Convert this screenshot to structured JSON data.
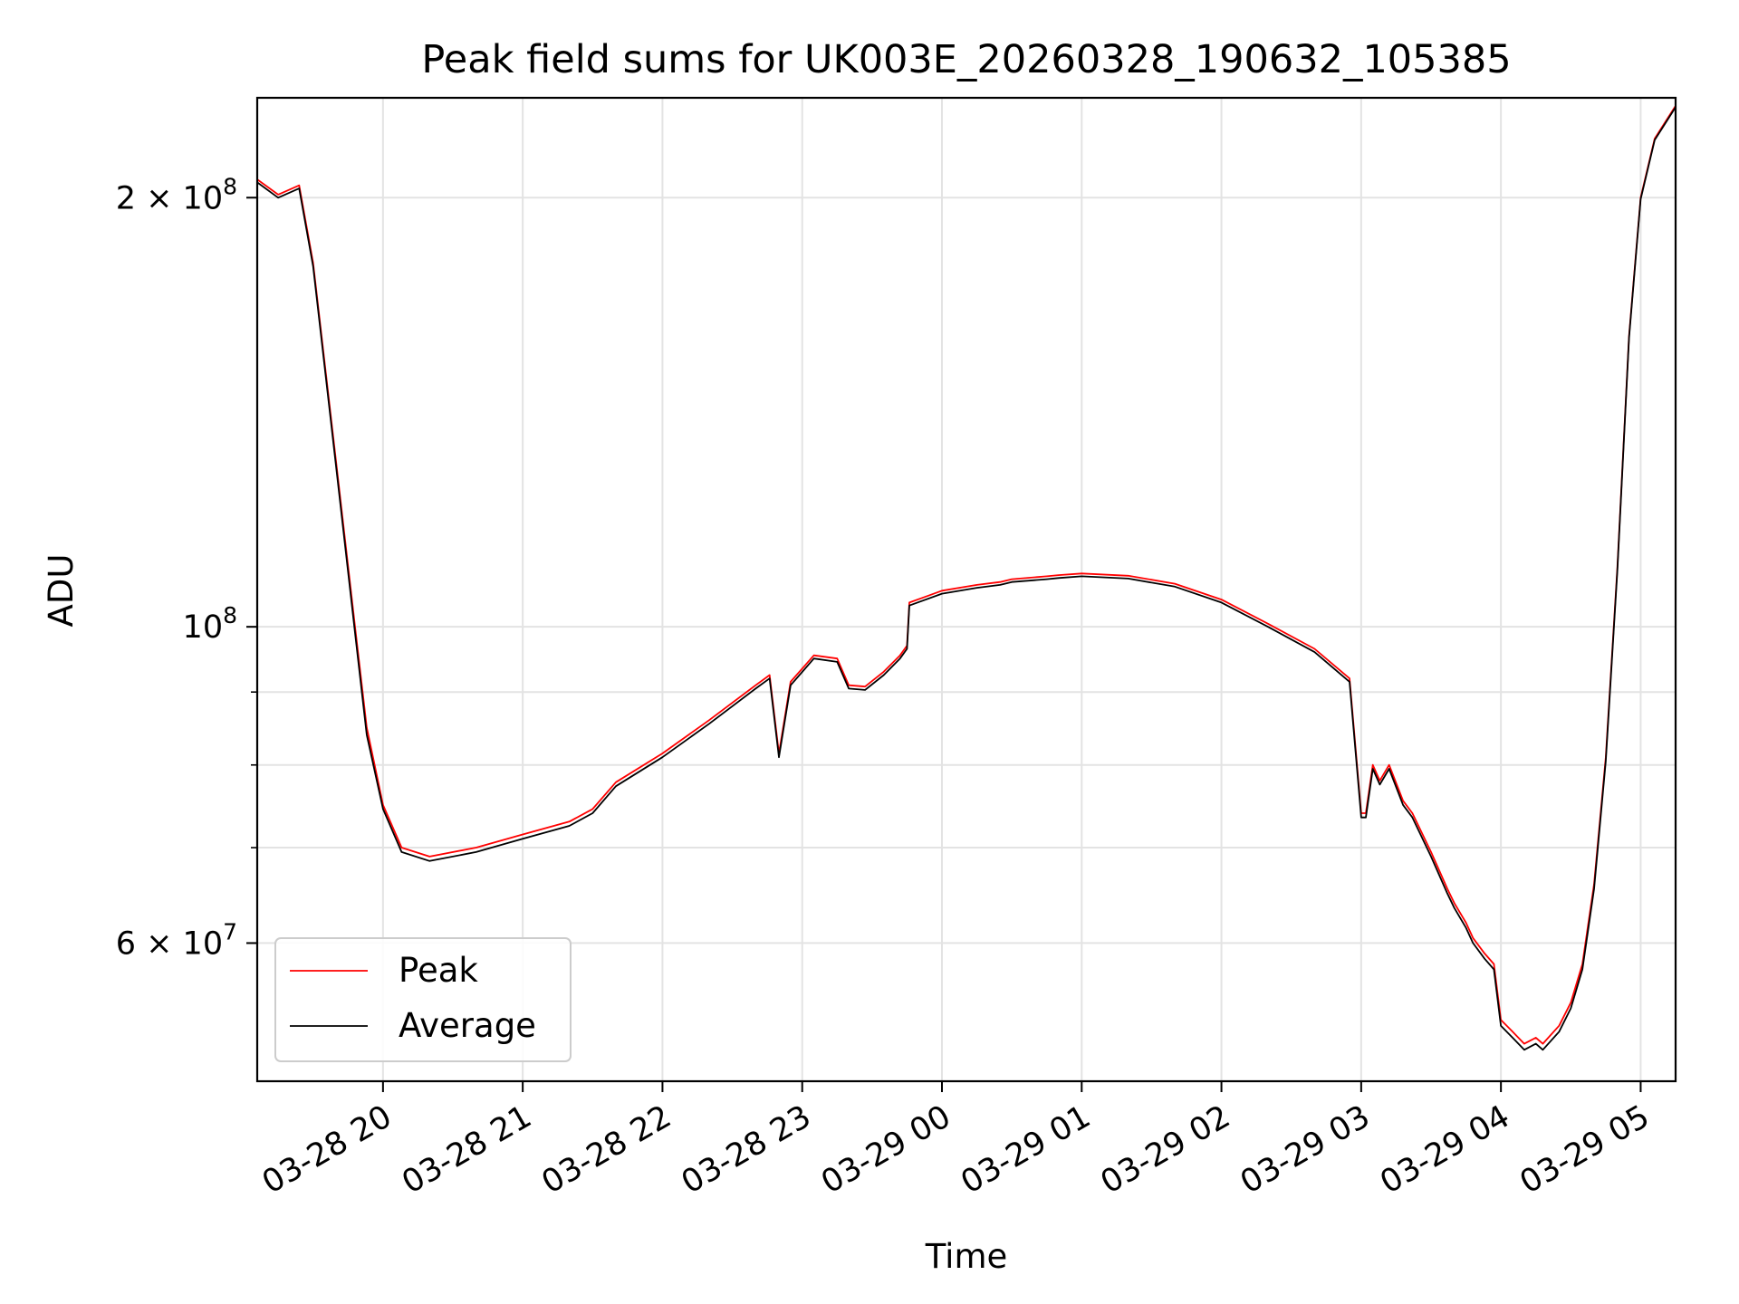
{
  "chart_data": {
    "type": "line",
    "title": "Peak field sums for UK003E_20260328_190632_105385",
    "xlabel": "Time",
    "ylabel": "ADU",
    "y_scale": "log",
    "ylim": [
      48000000,
      235000000
    ],
    "xlim": [
      "03-28 19:06",
      "03-29 05:15"
    ],
    "grid": true,
    "legend_position": "lower-left",
    "x_ticks": [
      "03-28 20",
      "03-28 21",
      "03-28 22",
      "03-28 23",
      "03-29 00",
      "03-29 01",
      "03-29 02",
      "03-29 03",
      "03-29 04",
      "03-29 05"
    ],
    "y_tick_labels": [
      {
        "value": 200000000,
        "mantissa": "2",
        "exponent": "8"
      },
      {
        "value": 100000000,
        "mantissa": "",
        "exponent": "8"
      },
      {
        "value": 60000000,
        "mantissa": "6",
        "exponent": "7"
      }
    ],
    "y_minor_ticks": [
      70000000,
      80000000,
      90000000
    ],
    "colors": {
      "peak": "#ff0000",
      "average": "#000000"
    },
    "x": [
      "03-28 19:06",
      "03-28 19:15",
      "03-28 19:24",
      "03-28 19:30",
      "03-28 19:40",
      "03-28 19:48",
      "03-28 19:53",
      "03-28 20:00",
      "03-28 20:08",
      "03-28 20:20",
      "03-28 20:40",
      "03-28 21:00",
      "03-28 21:20",
      "03-28 21:30",
      "03-28 21:40",
      "03-28 22:00",
      "03-28 22:20",
      "03-28 22:40",
      "03-28 22:46",
      "03-28 22:50",
      "03-28 22:55",
      "03-28 23:05",
      "03-28 23:15",
      "03-28 23:20",
      "03-28 23:27",
      "03-28 23:35",
      "03-28 23:42",
      "03-28 23:45",
      "03-28 23:46",
      "03-29 00:00",
      "03-29 00:15",
      "03-29 00:25",
      "03-29 00:30",
      "03-29 00:45",
      "03-29 00:50",
      "03-29 01:00",
      "03-29 01:20",
      "03-29 01:40",
      "03-29 02:00",
      "03-29 02:20",
      "03-29 02:40",
      "03-29 02:55",
      "03-29 03:00",
      "03-29 03:02",
      "03-29 03:05",
      "03-29 03:08",
      "03-29 03:12",
      "03-29 03:18",
      "03-29 03:22",
      "03-29 03:30",
      "03-29 03:37",
      "03-29 03:40",
      "03-29 03:45",
      "03-29 03:48",
      "03-29 03:53",
      "03-29 03:57",
      "03-29 04:00",
      "03-29 04:05",
      "03-29 04:10",
      "03-29 04:15",
      "03-29 04:18",
      "03-29 04:25",
      "03-29 04:30",
      "03-29 04:35",
      "03-29 04:40",
      "03-29 04:45",
      "03-29 04:50",
      "03-29 04:55",
      "03-29 05:00",
      "03-29 05:06",
      "03-29 05:15"
    ],
    "series": [
      {
        "name": "Peak",
        "values": [
          206000000,
          201000000,
          204000000,
          180000000,
          130000000,
          100000000,
          85000000,
          75000000,
          70000000,
          69000000,
          70000000,
          71500000,
          73000000,
          74500000,
          77800000,
          81500000,
          86000000,
          91000000,
          92500000,
          81500000,
          91500000,
          95500000,
          95000000,
          91000000,
          90800000,
          93000000,
          95500000,
          97000000,
          104000000,
          106000000,
          107000000,
          107500000,
          108000000,
          108500000,
          108700000,
          109000000,
          108600000,
          107200000,
          104500000,
          100500000,
          96500000,
          92000000,
          74000000,
          74000000,
          80000000,
          78000000,
          80000000,
          75500000,
          74000000,
          69500000,
          65500000,
          64000000,
          62000000,
          60500000,
          59000000,
          58000000,
          53000000,
          52000000,
          51000000,
          51500000,
          51000000,
          52500000,
          54500000,
          58000000,
          66000000,
          81000000,
          110000000,
          160000000,
          200000000,
          220000000,
          232000000
        ]
      },
      {
        "name": "Average",
        "values": [
          205000000,
          200000000,
          203000000,
          179000000,
          129000000,
          99000000,
          84000000,
          74500000,
          69500000,
          68500000,
          69500000,
          71000000,
          72500000,
          74000000,
          77300000,
          81000000,
          85500000,
          90500000,
          92000000,
          81000000,
          91000000,
          95000000,
          94500000,
          90500000,
          90300000,
          92500000,
          95000000,
          96500000,
          103500000,
          105500000,
          106500000,
          107000000,
          107500000,
          108000000,
          108200000,
          108500000,
          108100000,
          106700000,
          104000000,
          100000000,
          96000000,
          91500000,
          73500000,
          73500000,
          79500000,
          77500000,
          79500000,
          75000000,
          73500000,
          69000000,
          65000000,
          63500000,
          61500000,
          60000000,
          58500000,
          57500000,
          52500000,
          51500000,
          50500000,
          51000000,
          50500000,
          52000000,
          54000000,
          57500000,
          65500000,
          80500000,
          109500000,
          159500000,
          199500000,
          219500000,
          231500000
        ]
      }
    ]
  }
}
